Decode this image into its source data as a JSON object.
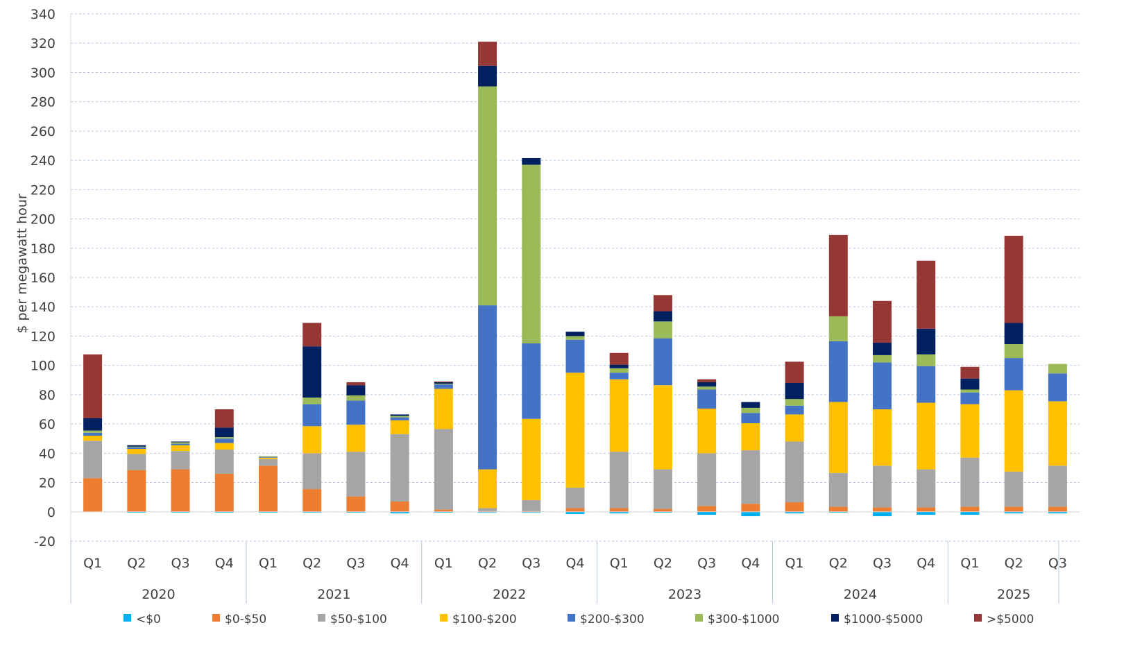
{
  "chart_data": {
    "type": "bar",
    "stacked": true,
    "title": "",
    "xlabel": "",
    "ylabel": "$ per megawatt hour",
    "ylim": [
      -20,
      340
    ],
    "yticks": [
      -20,
      0,
      20,
      40,
      60,
      80,
      100,
      120,
      140,
      160,
      180,
      200,
      220,
      240,
      260,
      280,
      300,
      320,
      340
    ],
    "ytick_labels": [
      "-20",
      "0",
      "20",
      "40",
      "60",
      "80",
      "100",
      "120",
      "140",
      "160",
      "180",
      "200",
      "220",
      "240",
      "260",
      "280",
      "300",
      "320",
      "340"
    ],
    "grid": true,
    "legend_position": "bottom",
    "categories": [
      "Q1",
      "Q2",
      "Q3",
      "Q4",
      "Q1",
      "Q2",
      "Q3",
      "Q4",
      "Q1",
      "Q2",
      "Q3",
      "Q4",
      "Q1",
      "Q2",
      "Q3",
      "Q4",
      "Q1",
      "Q2",
      "Q3",
      "Q4",
      "Q1",
      "Q2",
      "Q3"
    ],
    "years": [
      {
        "label": "2020",
        "count": 4
      },
      {
        "label": "2021",
        "count": 4
      },
      {
        "label": "2022",
        "count": 4
      },
      {
        "label": "2023",
        "count": 4
      },
      {
        "label": "2024",
        "count": 4
      },
      {
        "label": "2025",
        "count": 3
      }
    ],
    "series": [
      {
        "name": "<$0",
        "color": "#00b0f0",
        "values": [
          0,
          -0.5,
          -0.5,
          -0.5,
          -0.5,
          -0.5,
          -0.5,
          -1,
          -0.5,
          -0.5,
          -0.5,
          -1.5,
          -1,
          -0.5,
          -2,
          -3,
          -1,
          -0.5,
          -3,
          -2,
          -2,
          -1,
          -1
        ]
      },
      {
        "name": "$0-$50",
        "color": "#ed7d31",
        "values": [
          23,
          28.5,
          29,
          26,
          31.5,
          15.5,
          10.5,
          7,
          1.5,
          0.5,
          0.5,
          2.5,
          2.5,
          2,
          4,
          5.5,
          6.5,
          3.5,
          3,
          3,
          3.5,
          3.5,
          3.5
        ]
      },
      {
        "name": "$50-$100",
        "color": "#a5a5a5",
        "values": [
          25.5,
          11,
          12.5,
          16.5,
          4.5,
          24.5,
          30.5,
          46,
          55,
          2,
          7.5,
          14,
          38.5,
          27,
          36,
          36.5,
          41.5,
          23,
          28.5,
          26,
          33.5,
          24,
          28
        ]
      },
      {
        "name": "$100-$200",
        "color": "#ffc000",
        "values": [
          3.5,
          3.5,
          4,
          4.5,
          1,
          18.5,
          18.5,
          9.5,
          27.5,
          26.5,
          55.5,
          78.5,
          49.5,
          57.5,
          30.5,
          18.5,
          18.5,
          48.5,
          38.5,
          45.5,
          36.5,
          55.5,
          44
        ]
      },
      {
        "name": "$200-$300",
        "color": "#4472c4",
        "values": [
          2,
          1,
          1,
          3,
          0.5,
          15,
          16.5,
          2,
          3,
          112,
          51.5,
          22.5,
          4.5,
          32,
          13,
          7,
          6,
          41.5,
          32,
          25,
          8,
          22,
          19
        ]
      },
      {
        "name": "$300-$1000",
        "color": "#9bbb59",
        "values": [
          1.5,
          0.5,
          1,
          1,
          0.5,
          4.5,
          3.5,
          1,
          0.5,
          149.5,
          122,
          2.5,
          3,
          11.5,
          2,
          3.5,
          4.5,
          17,
          5,
          8,
          2,
          9.5,
          6.5
        ]
      },
      {
        "name": "$1000-$5000",
        "color": "#002060",
        "values": [
          8.5,
          1,
          0.5,
          6.5,
          0,
          35,
          7,
          1,
          1,
          14,
          4.5,
          3,
          2.5,
          7,
          3,
          4,
          11,
          0,
          8.5,
          17.5,
          7.5,
          14.5,
          0
        ]
      },
      {
        "name": ">$5000",
        "color": "#953735",
        "values": [
          43.5,
          0,
          0,
          12.5,
          0,
          16,
          2,
          0,
          0.5,
          16.5,
          0,
          0,
          8,
          11,
          2,
          0,
          14.5,
          55.5,
          28.5,
          46.5,
          8,
          59.5,
          0
        ]
      }
    ]
  }
}
